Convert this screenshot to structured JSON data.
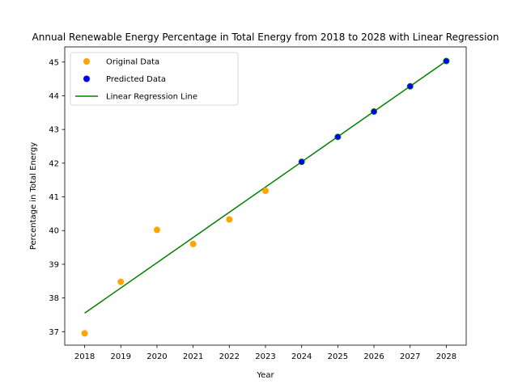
{
  "chart_data": {
    "type": "scatter",
    "title": "Annual Renewable Energy Percentage in Total Energy from 2018 to 2028 with Linear Regression",
    "xlabel": "Year",
    "ylabel": "Percentage in Total Energy",
    "xlim": [
      2017.45,
      2028.55
    ],
    "ylim": [
      36.6,
      45.45
    ],
    "xticks": [
      "2018",
      "2019",
      "2020",
      "2021",
      "2022",
      "2023",
      "2024",
      "2025",
      "2026",
      "2027",
      "2028"
    ],
    "yticks": [
      "37",
      "38",
      "39",
      "40",
      "41",
      "42",
      "43",
      "44",
      "45"
    ],
    "grid": false,
    "legend_position": "top-left",
    "series": [
      {
        "name": "Original Data",
        "marker": "circle",
        "color": "#ffa500",
        "x": [
          2018,
          2019,
          2020,
          2021,
          2022,
          2023
        ],
        "y": [
          36.95,
          38.48,
          40.02,
          39.6,
          40.33,
          41.18
        ]
      },
      {
        "name": "Predicted Data",
        "marker": "circle",
        "color": "#0000ff",
        "edge_color": "#008000",
        "x": [
          2024,
          2025,
          2026,
          2027,
          2028
        ],
        "y": [
          42.04,
          42.78,
          43.53,
          44.28,
          45.03
        ]
      },
      {
        "name": "Linear Regression Line",
        "marker": "line",
        "color": "#008000",
        "x": [
          2018,
          2028
        ],
        "y": [
          37.55,
          45.03
        ]
      }
    ]
  }
}
